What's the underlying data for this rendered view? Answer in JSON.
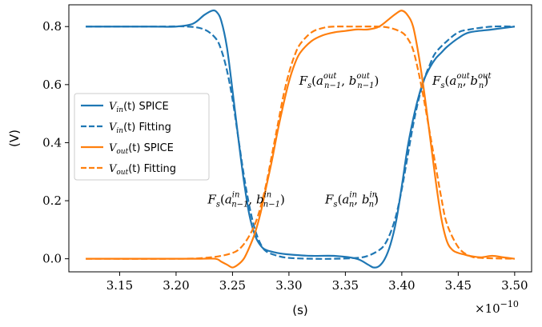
{
  "chart_data": {
    "type": "line",
    "xlabel": "(s)",
    "ylabel": "(V)",
    "x_scale_note": "×10",
    "x_scale_exp": "−10",
    "xlim": [
      3.105,
      3.515
    ],
    "ylim": [
      -0.045,
      0.875
    ],
    "x_ticks": [
      3.15,
      3.2,
      3.25,
      3.3,
      3.35,
      3.4,
      3.45,
      3.5
    ],
    "x_tick_labels": [
      "3.15",
      "3.20",
      "3.25",
      "3.30",
      "3.35",
      "3.40",
      "3.45",
      "3.50"
    ],
    "y_ticks": [
      0.0,
      0.2,
      0.4,
      0.6,
      0.8
    ],
    "y_tick_labels": [
      "0.0",
      "0.2",
      "0.4",
      "0.6",
      "0.8"
    ],
    "grid": false,
    "legend_position": "center-left",
    "series": [
      {
        "name": "V_in(t) SPICE",
        "legend_math": "V",
        "legend_sub": "in",
        "legend_suffix": "(t) SPICE",
        "color": "#1f77b4",
        "dash": "solid",
        "x": [
          3.12,
          3.15,
          3.18,
          3.2,
          3.215,
          3.225,
          3.232,
          3.236,
          3.24,
          3.245,
          3.25,
          3.255,
          3.26,
          3.265,
          3.27,
          3.275,
          3.28,
          3.29,
          3.3,
          3.32,
          3.34,
          3.36,
          3.37,
          3.375,
          3.38,
          3.385,
          3.39,
          3.395,
          3.4,
          3.405,
          3.41,
          3.415,
          3.42,
          3.425,
          3.43,
          3.435,
          3.44,
          3.45,
          3.46,
          3.48,
          3.5
        ],
        "y": [
          0.8,
          0.8,
          0.8,
          0.8,
          0.81,
          0.84,
          0.855,
          0.85,
          0.82,
          0.73,
          0.58,
          0.42,
          0.27,
          0.15,
          0.08,
          0.045,
          0.03,
          0.02,
          0.015,
          0.01,
          0.01,
          0.0,
          -0.02,
          -0.03,
          -0.025,
          0.0,
          0.05,
          0.13,
          0.25,
          0.38,
          0.48,
          0.56,
          0.62,
          0.66,
          0.69,
          0.71,
          0.73,
          0.76,
          0.78,
          0.79,
          0.8
        ]
      },
      {
        "name": "V_in(t) Fitting",
        "legend_math": "V",
        "legend_sub": "in",
        "legend_suffix": "(t) Fitting",
        "color": "#1f77b4",
        "dash": "dashed",
        "x": [
          3.12,
          3.18,
          3.21,
          3.225,
          3.235,
          3.24,
          3.245,
          3.25,
          3.255,
          3.26,
          3.265,
          3.27,
          3.275,
          3.28,
          3.29,
          3.3,
          3.32,
          3.34,
          3.36,
          3.37,
          3.38,
          3.385,
          3.39,
          3.395,
          3.4,
          3.405,
          3.41,
          3.415,
          3.42,
          3.425,
          3.43,
          3.44,
          3.45,
          3.46,
          3.48,
          3.5
        ],
        "y": [
          0.8,
          0.8,
          0.8,
          0.79,
          0.76,
          0.72,
          0.65,
          0.55,
          0.42,
          0.29,
          0.18,
          0.1,
          0.05,
          0.025,
          0.01,
          0.003,
          0.0,
          0.0,
          0.003,
          0.01,
          0.03,
          0.05,
          0.09,
          0.15,
          0.24,
          0.35,
          0.46,
          0.55,
          0.62,
          0.67,
          0.71,
          0.75,
          0.78,
          0.79,
          0.8,
          0.8
        ]
      },
      {
        "name": "V_out(t) SPICE",
        "legend_math": "V",
        "legend_sub": "out",
        "legend_suffix": "(t) SPICE",
        "color": "#ff7f0e",
        "dash": "solid",
        "x": [
          3.12,
          3.15,
          3.18,
          3.2,
          3.22,
          3.235,
          3.24,
          3.245,
          3.25,
          3.255,
          3.26,
          3.265,
          3.27,
          3.275,
          3.28,
          3.285,
          3.29,
          3.295,
          3.3,
          3.305,
          3.31,
          3.32,
          3.33,
          3.34,
          3.35,
          3.36,
          3.37,
          3.38,
          3.39,
          3.395,
          3.4,
          3.405,
          3.41,
          3.415,
          3.42,
          3.425,
          3.43,
          3.435,
          3.44,
          3.445,
          3.45,
          3.455,
          3.46,
          3.47,
          3.48,
          3.49,
          3.5
        ],
        "y": [
          0.0,
          0.0,
          0.0,
          0.0,
          0.0,
          0.0,
          -0.01,
          -0.02,
          -0.03,
          -0.02,
          0.0,
          0.04,
          0.09,
          0.16,
          0.25,
          0.34,
          0.44,
          0.53,
          0.61,
          0.67,
          0.71,
          0.75,
          0.77,
          0.78,
          0.785,
          0.79,
          0.79,
          0.8,
          0.83,
          0.845,
          0.855,
          0.84,
          0.8,
          0.7,
          0.57,
          0.42,
          0.27,
          0.14,
          0.06,
          0.03,
          0.02,
          0.015,
          0.01,
          0.005,
          0.01,
          0.005,
          0.0
        ]
      },
      {
        "name": "V_out(t) Fitting",
        "legend_math": "V",
        "legend_sub": "out",
        "legend_suffix": "(t) Fitting",
        "color": "#ff7f0e",
        "dash": "dashed",
        "x": [
          3.12,
          3.2,
          3.225,
          3.24,
          3.25,
          3.255,
          3.26,
          3.265,
          3.27,
          3.275,
          3.28,
          3.285,
          3.29,
          3.295,
          3.3,
          3.305,
          3.31,
          3.32,
          3.33,
          3.34,
          3.36,
          3.38,
          3.39,
          3.4,
          3.405,
          3.41,
          3.415,
          3.42,
          3.425,
          3.43,
          3.435,
          3.44,
          3.45,
          3.46,
          3.47,
          3.5
        ],
        "y": [
          0.0,
          0.0,
          0.003,
          0.01,
          0.02,
          0.03,
          0.05,
          0.08,
          0.12,
          0.18,
          0.26,
          0.36,
          0.46,
          0.56,
          0.64,
          0.7,
          0.74,
          0.78,
          0.795,
          0.8,
          0.8,
          0.8,
          0.795,
          0.78,
          0.76,
          0.72,
          0.64,
          0.54,
          0.43,
          0.32,
          0.21,
          0.12,
          0.04,
          0.01,
          0.003,
          0.0
        ]
      }
    ],
    "annotations": [
      {
        "base": "F",
        "base_sub": "s",
        "open": "(",
        "a": "a",
        "a_sup": "in",
        "a_sub": "n−1",
        "sep": ", ",
        "b": "b",
        "b_sup": "in",
        "b_sub": "n−1",
        "close": ")",
        "at": [
          3.228,
          0.19
        ]
      },
      {
        "base": "F",
        "base_sub": "s",
        "open": "(",
        "a": "a",
        "a_sup": "in",
        "a_sub": "n",
        "sep": ", ",
        "b": "b",
        "b_sup": "in",
        "b_sub": "n",
        "close": ")",
        "at": [
          3.332,
          0.19
        ]
      },
      {
        "base": "F",
        "base_sub": "s",
        "open": "(",
        "a": "a",
        "a_sup": "out",
        "a_sub": "n−1",
        "sep": ", ",
        "b": "b",
        "b_sup": "out",
        "b_sub": "n−1",
        "close": ")",
        "at": [
          3.309,
          0.6
        ]
      },
      {
        "base": "F",
        "base_sub": "s",
        "open": "(",
        "a": "a",
        "a_sup": "out",
        "a_sub": "n",
        "sep": ", ",
        "b": "b",
        "b_sup": "out",
        "b_sub": "n",
        "close": ")",
        "at": [
          3.427,
          0.6
        ]
      }
    ]
  }
}
